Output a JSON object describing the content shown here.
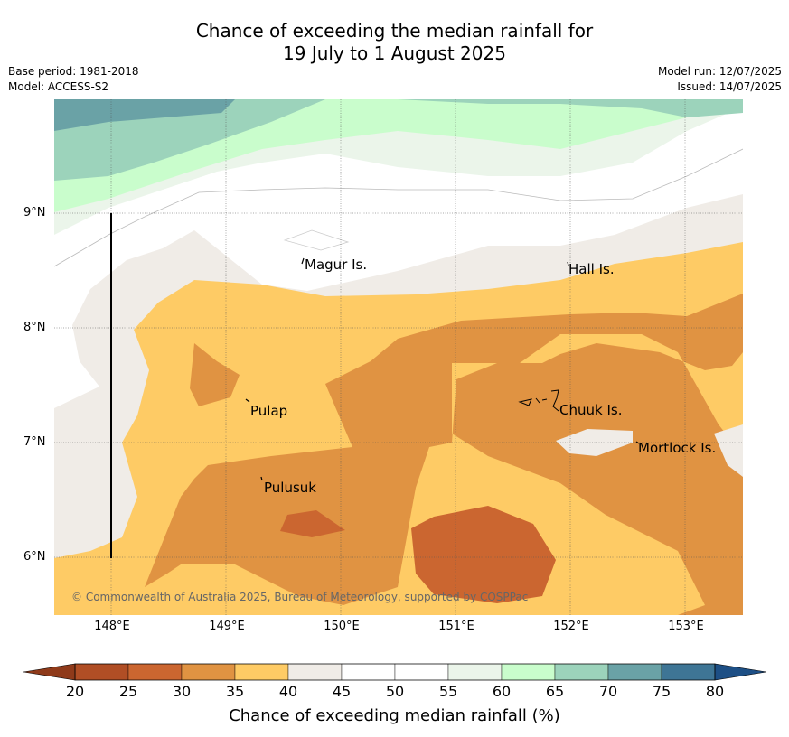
{
  "title": {
    "line1": "Chance of exceeding the median rainfall for",
    "line2": "19 July to 1 August 2025"
  },
  "meta": {
    "base_period": "Base period: 1981-2018",
    "model": "Model: ACCESS-S2",
    "model_run": "Model run: 12/07/2025",
    "issued": "Issued: 14/07/2025"
  },
  "map": {
    "lon_range": [
      147.5,
      153.5
    ],
    "lat_range": [
      5.5,
      10.0
    ],
    "gridlines": true,
    "x_ticks": [
      "148°E",
      "149°E",
      "150°E",
      "151°E",
      "152°E",
      "153°E"
    ],
    "y_ticks": [
      "9°N",
      "8°N",
      "7°N",
      "6°N"
    ],
    "place_labels": [
      "Magur Is.",
      "Hall Is.",
      "Pulap",
      "Chuuk Is.",
      "Mortlock Is.",
      "Pulusuk"
    ],
    "copyright": "© Commonwealth of Australia 2025, Bureau of Meteorology, supported by COSPPac"
  },
  "colorbar": {
    "ticks": [
      "20",
      "25",
      "30",
      "35",
      "40",
      "45",
      "50",
      "55",
      "60",
      "65",
      "70",
      "75",
      "80"
    ],
    "colors": [
      "#b04e25",
      "#cb6630",
      "#e09342",
      "#fecb65",
      "#f0ece7",
      "#ffffff",
      "#ffffff",
      "#ebf5ea",
      "#c9fdcc",
      "#9cd3bb",
      "#6aa2a6",
      "#3e7595"
    ],
    "under_color": "#8f3a1a",
    "over_color": "#1d4f85",
    "label": "Chance of exceeding median rainfall (%)"
  }
}
